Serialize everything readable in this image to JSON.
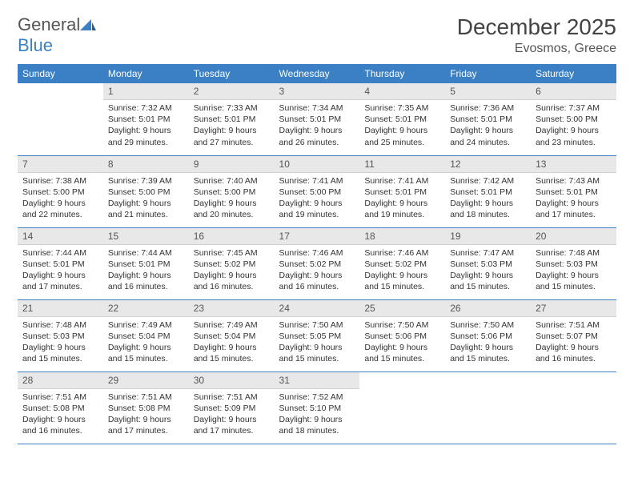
{
  "logo": {
    "text1": "General",
    "text2": "Blue"
  },
  "title": "December 2025",
  "location": "Evosmos, Greece",
  "colors": {
    "header_bg": "#3b7fc4",
    "header_text": "#ffffff",
    "daynum_bg": "#e8e8e8",
    "text": "#333333",
    "row_border": "#3b7fc4"
  },
  "weekdays": [
    "Sunday",
    "Monday",
    "Tuesday",
    "Wednesday",
    "Thursday",
    "Friday",
    "Saturday"
  ],
  "labels": {
    "sunrise": "Sunrise:",
    "sunset": "Sunset:",
    "daylight": "Daylight:"
  },
  "start_offset": 1,
  "days": [
    {
      "n": 1,
      "sunrise": "7:32 AM",
      "sunset": "5:01 PM",
      "daylight": "9 hours and 29 minutes."
    },
    {
      "n": 2,
      "sunrise": "7:33 AM",
      "sunset": "5:01 PM",
      "daylight": "9 hours and 27 minutes."
    },
    {
      "n": 3,
      "sunrise": "7:34 AM",
      "sunset": "5:01 PM",
      "daylight": "9 hours and 26 minutes."
    },
    {
      "n": 4,
      "sunrise": "7:35 AM",
      "sunset": "5:01 PM",
      "daylight": "9 hours and 25 minutes."
    },
    {
      "n": 5,
      "sunrise": "7:36 AM",
      "sunset": "5:01 PM",
      "daylight": "9 hours and 24 minutes."
    },
    {
      "n": 6,
      "sunrise": "7:37 AM",
      "sunset": "5:00 PM",
      "daylight": "9 hours and 23 minutes."
    },
    {
      "n": 7,
      "sunrise": "7:38 AM",
      "sunset": "5:00 PM",
      "daylight": "9 hours and 22 minutes."
    },
    {
      "n": 8,
      "sunrise": "7:39 AM",
      "sunset": "5:00 PM",
      "daylight": "9 hours and 21 minutes."
    },
    {
      "n": 9,
      "sunrise": "7:40 AM",
      "sunset": "5:00 PM",
      "daylight": "9 hours and 20 minutes."
    },
    {
      "n": 10,
      "sunrise": "7:41 AM",
      "sunset": "5:00 PM",
      "daylight": "9 hours and 19 minutes."
    },
    {
      "n": 11,
      "sunrise": "7:41 AM",
      "sunset": "5:01 PM",
      "daylight": "9 hours and 19 minutes."
    },
    {
      "n": 12,
      "sunrise": "7:42 AM",
      "sunset": "5:01 PM",
      "daylight": "9 hours and 18 minutes."
    },
    {
      "n": 13,
      "sunrise": "7:43 AM",
      "sunset": "5:01 PM",
      "daylight": "9 hours and 17 minutes."
    },
    {
      "n": 14,
      "sunrise": "7:44 AM",
      "sunset": "5:01 PM",
      "daylight": "9 hours and 17 minutes."
    },
    {
      "n": 15,
      "sunrise": "7:44 AM",
      "sunset": "5:01 PM",
      "daylight": "9 hours and 16 minutes."
    },
    {
      "n": 16,
      "sunrise": "7:45 AM",
      "sunset": "5:02 PM",
      "daylight": "9 hours and 16 minutes."
    },
    {
      "n": 17,
      "sunrise": "7:46 AM",
      "sunset": "5:02 PM",
      "daylight": "9 hours and 16 minutes."
    },
    {
      "n": 18,
      "sunrise": "7:46 AM",
      "sunset": "5:02 PM",
      "daylight": "9 hours and 15 minutes."
    },
    {
      "n": 19,
      "sunrise": "7:47 AM",
      "sunset": "5:03 PM",
      "daylight": "9 hours and 15 minutes."
    },
    {
      "n": 20,
      "sunrise": "7:48 AM",
      "sunset": "5:03 PM",
      "daylight": "9 hours and 15 minutes."
    },
    {
      "n": 21,
      "sunrise": "7:48 AM",
      "sunset": "5:03 PM",
      "daylight": "9 hours and 15 minutes."
    },
    {
      "n": 22,
      "sunrise": "7:49 AM",
      "sunset": "5:04 PM",
      "daylight": "9 hours and 15 minutes."
    },
    {
      "n": 23,
      "sunrise": "7:49 AM",
      "sunset": "5:04 PM",
      "daylight": "9 hours and 15 minutes."
    },
    {
      "n": 24,
      "sunrise": "7:50 AM",
      "sunset": "5:05 PM",
      "daylight": "9 hours and 15 minutes."
    },
    {
      "n": 25,
      "sunrise": "7:50 AM",
      "sunset": "5:06 PM",
      "daylight": "9 hours and 15 minutes."
    },
    {
      "n": 26,
      "sunrise": "7:50 AM",
      "sunset": "5:06 PM",
      "daylight": "9 hours and 15 minutes."
    },
    {
      "n": 27,
      "sunrise": "7:51 AM",
      "sunset": "5:07 PM",
      "daylight": "9 hours and 16 minutes."
    },
    {
      "n": 28,
      "sunrise": "7:51 AM",
      "sunset": "5:08 PM",
      "daylight": "9 hours and 16 minutes."
    },
    {
      "n": 29,
      "sunrise": "7:51 AM",
      "sunset": "5:08 PM",
      "daylight": "9 hours and 17 minutes."
    },
    {
      "n": 30,
      "sunrise": "7:51 AM",
      "sunset": "5:09 PM",
      "daylight": "9 hours and 17 minutes."
    },
    {
      "n": 31,
      "sunrise": "7:52 AM",
      "sunset": "5:10 PM",
      "daylight": "9 hours and 18 minutes."
    }
  ]
}
